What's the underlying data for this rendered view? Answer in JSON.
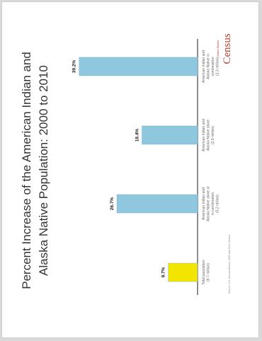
{
  "chart_data": {
    "type": "bar",
    "title_line1": "Percent Increase of the American Indian and",
    "title_line2": "Alaska Native Population: 2000 to 2010",
    "categories": [
      [
        "Total population",
        "(9.7 million)"
      ],
      [
        "American Indian and",
        "Alaska Native alone or",
        "in combination",
        "(5.2 million)"
      ],
      [
        "American Indian and",
        "Alaska Native alone",
        "(2.9 million)"
      ],
      [
        "American Indian and",
        "Alaska Native in",
        "combination",
        "(2.3 million)"
      ]
    ],
    "values": [
      9.7,
      26.7,
      18.4,
      39.2
    ],
    "value_labels": [
      "9.7%",
      "26.7%",
      "18.4%",
      "39.2%"
    ],
    "bar_colors": [
      "#f2e600",
      "#8fc8de",
      "#8fc8de",
      "#8fc8de"
    ],
    "ylim": [
      0,
      45
    ],
    "grid": false,
    "source_note": "Source: U.S. Census Bureau, 2000 and 2010 Census.",
    "logo_top": "United States",
    "logo_main": "Census"
  }
}
